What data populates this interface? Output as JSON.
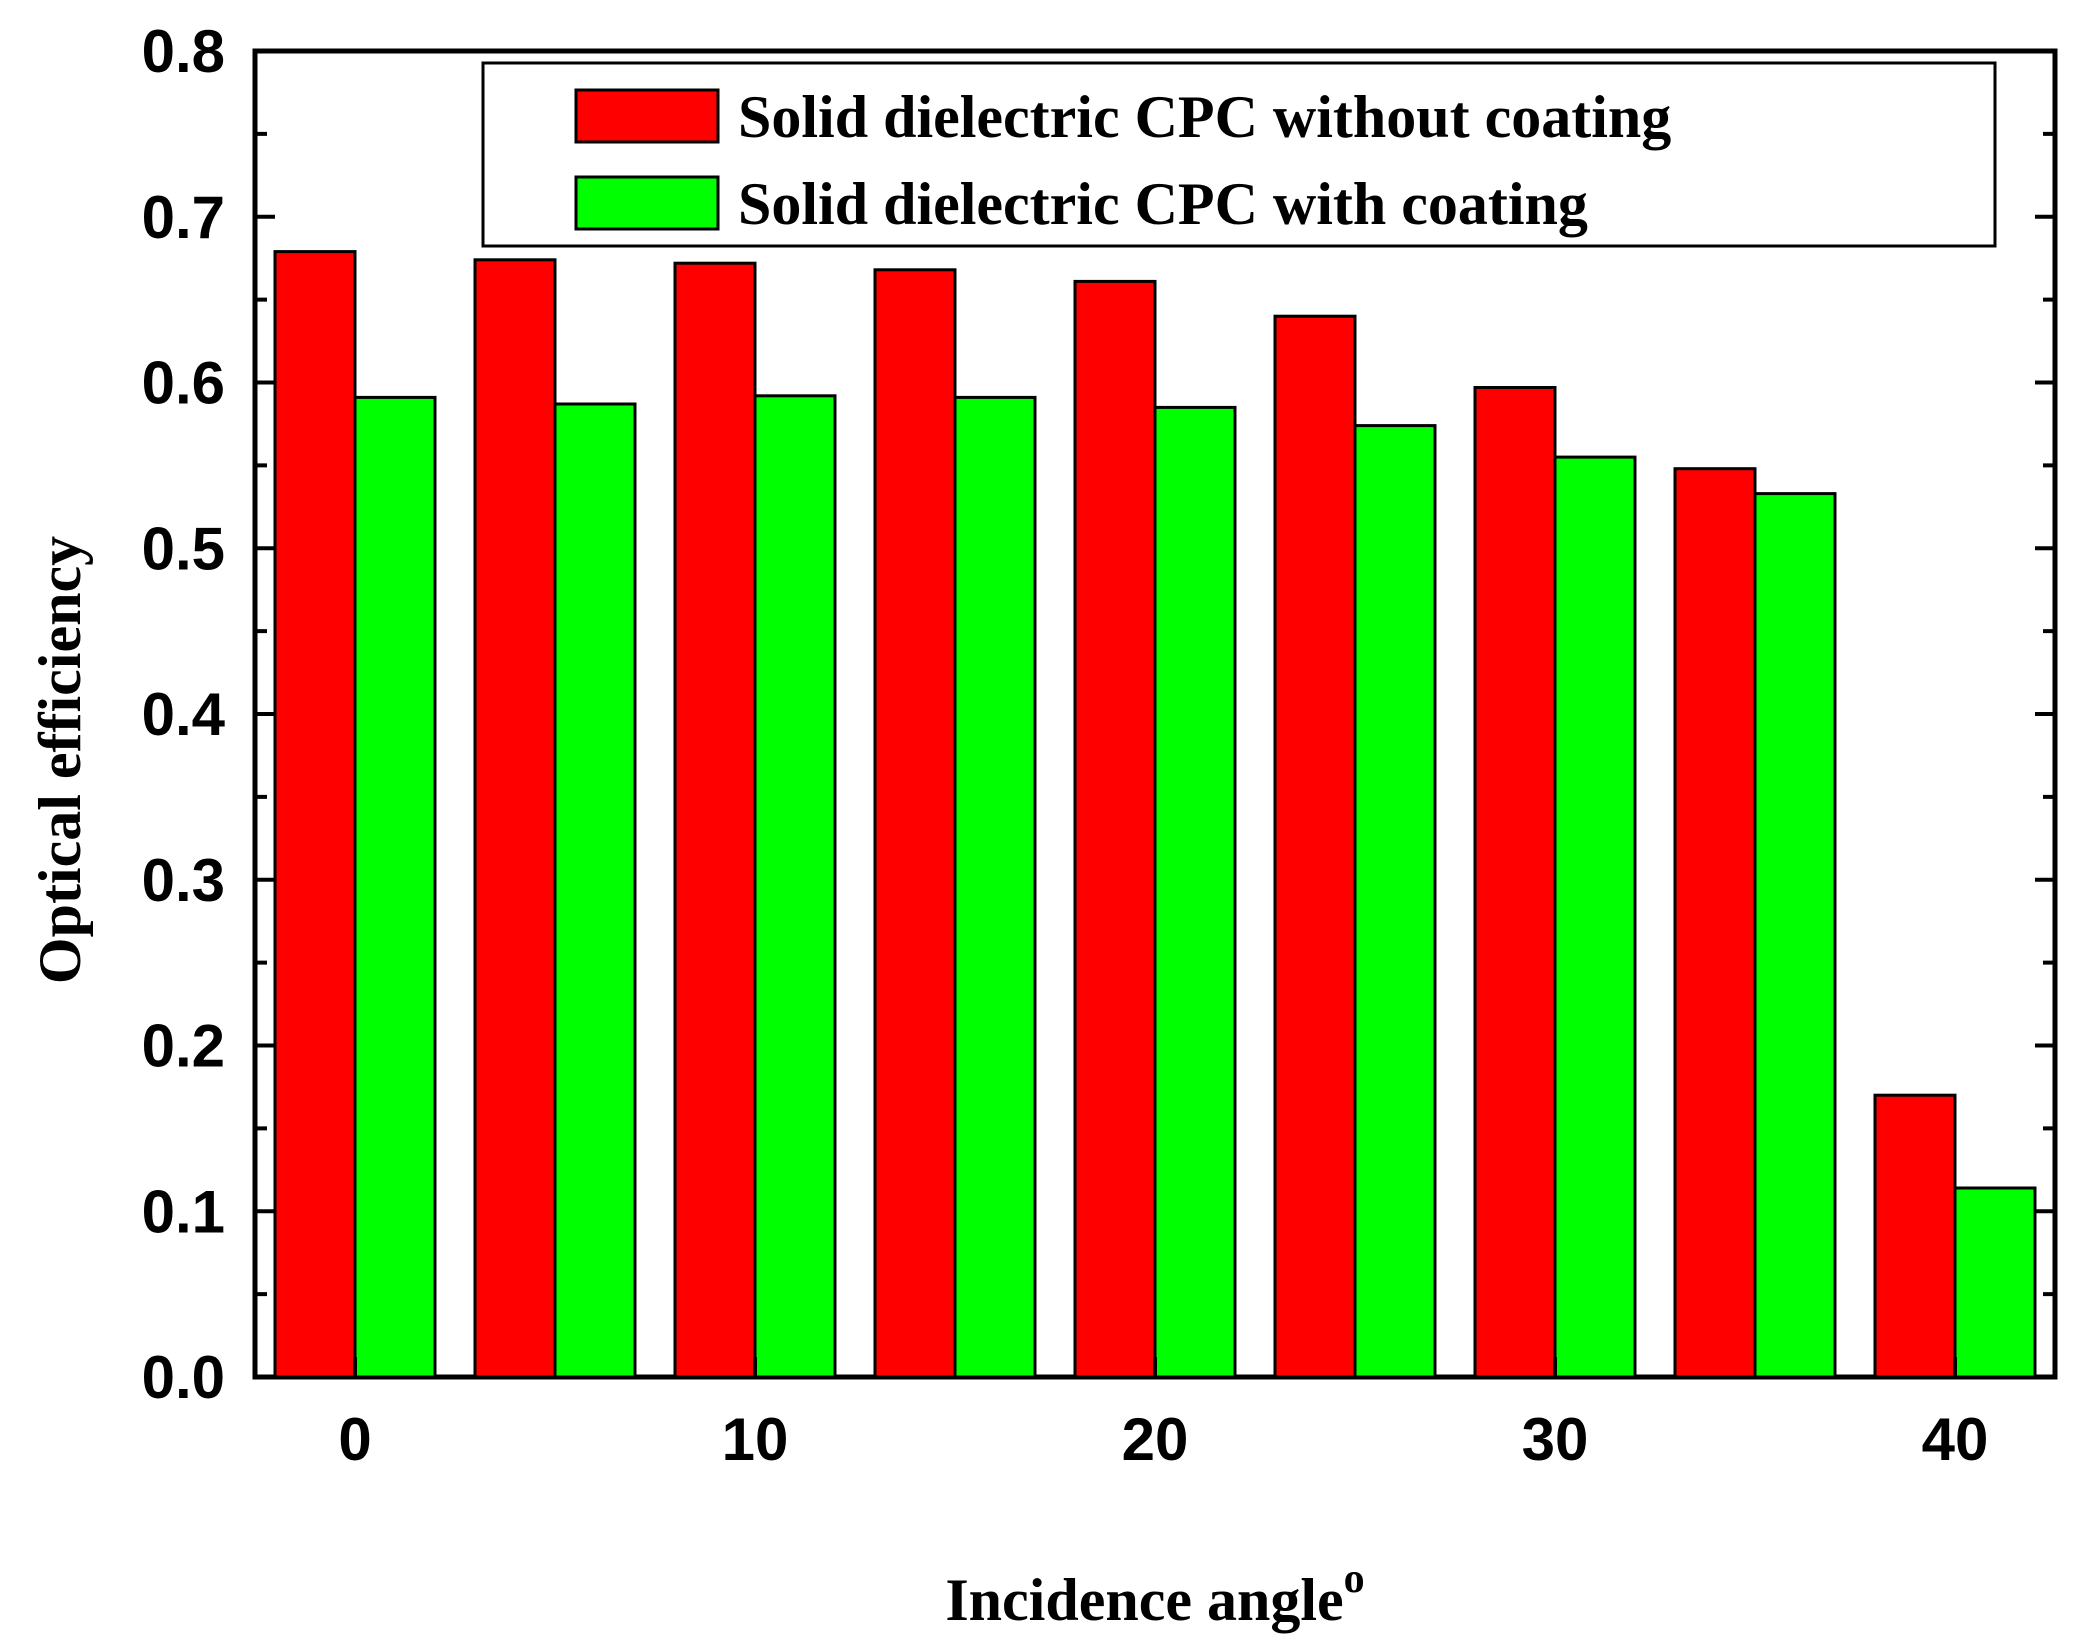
{
  "chart_data": {
    "type": "bar",
    "title": "",
    "xlabel": "Incidence angle",
    "xlabel_superscript": "o",
    "ylabel": "Optical efficiency",
    "ylim": [
      0.0,
      0.8
    ],
    "xlim": [
      -2.5,
      42.5
    ],
    "x": [
      0,
      5,
      10,
      15,
      20,
      25,
      30,
      35,
      40
    ],
    "x_ticks": [
      "0",
      "10",
      "20",
      "30",
      "40"
    ],
    "x_tick_values": [
      0,
      10,
      20,
      30,
      40
    ],
    "y_ticks": [
      "0.0",
      "0.1",
      "0.2",
      "0.3",
      "0.4",
      "0.5",
      "0.6",
      "0.7",
      "0.8"
    ],
    "y_tick_values": [
      0.0,
      0.1,
      0.2,
      0.3,
      0.4,
      0.5,
      0.6,
      0.7,
      0.8
    ],
    "series": [
      {
        "name": "Solid dielectric CPC without coating",
        "color": "#ff0000",
        "values": [
          0.679,
          0.674,
          0.672,
          0.668,
          0.661,
          0.64,
          0.597,
          0.548,
          0.17
        ]
      },
      {
        "name": "Solid dielectric CPC with coating",
        "color": "#00ff00",
        "values": [
          0.591,
          0.587,
          0.592,
          0.591,
          0.585,
          0.574,
          0.555,
          0.533,
          0.114
        ]
      }
    ],
    "legend_position": "top-right",
    "grid": false
  }
}
